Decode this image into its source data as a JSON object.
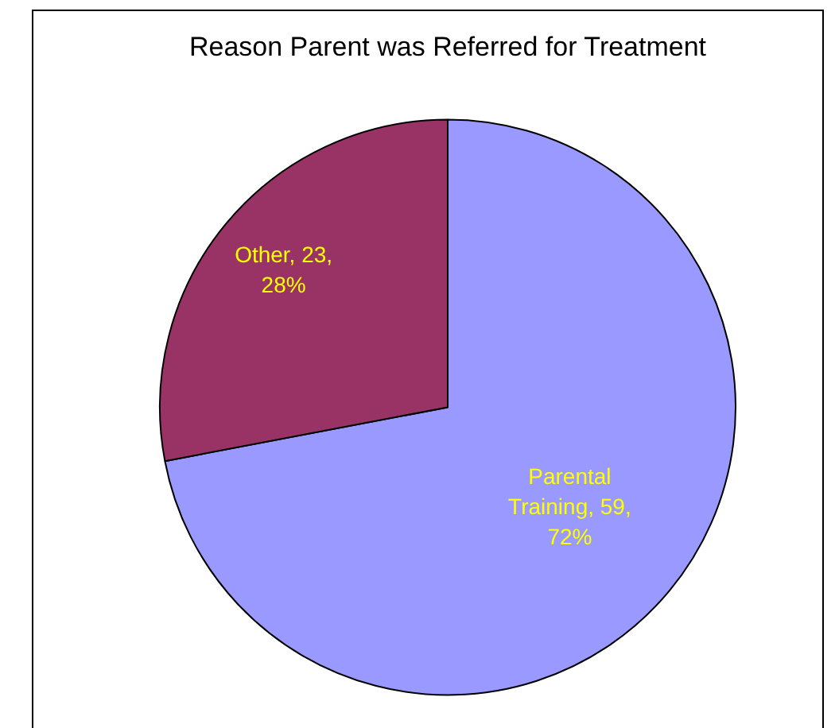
{
  "chart_data": {
    "type": "pie",
    "title": "Reason Parent was Referred for Treatment",
    "categories": [
      "Parental Training",
      "Other"
    ],
    "values": [
      72,
      28
    ],
    "colors": [
      "#9999ff",
      "#993366"
    ],
    "value_labels": [
      "59, 72%",
      "23, 28%"
    ],
    "legend": false
  }
}
